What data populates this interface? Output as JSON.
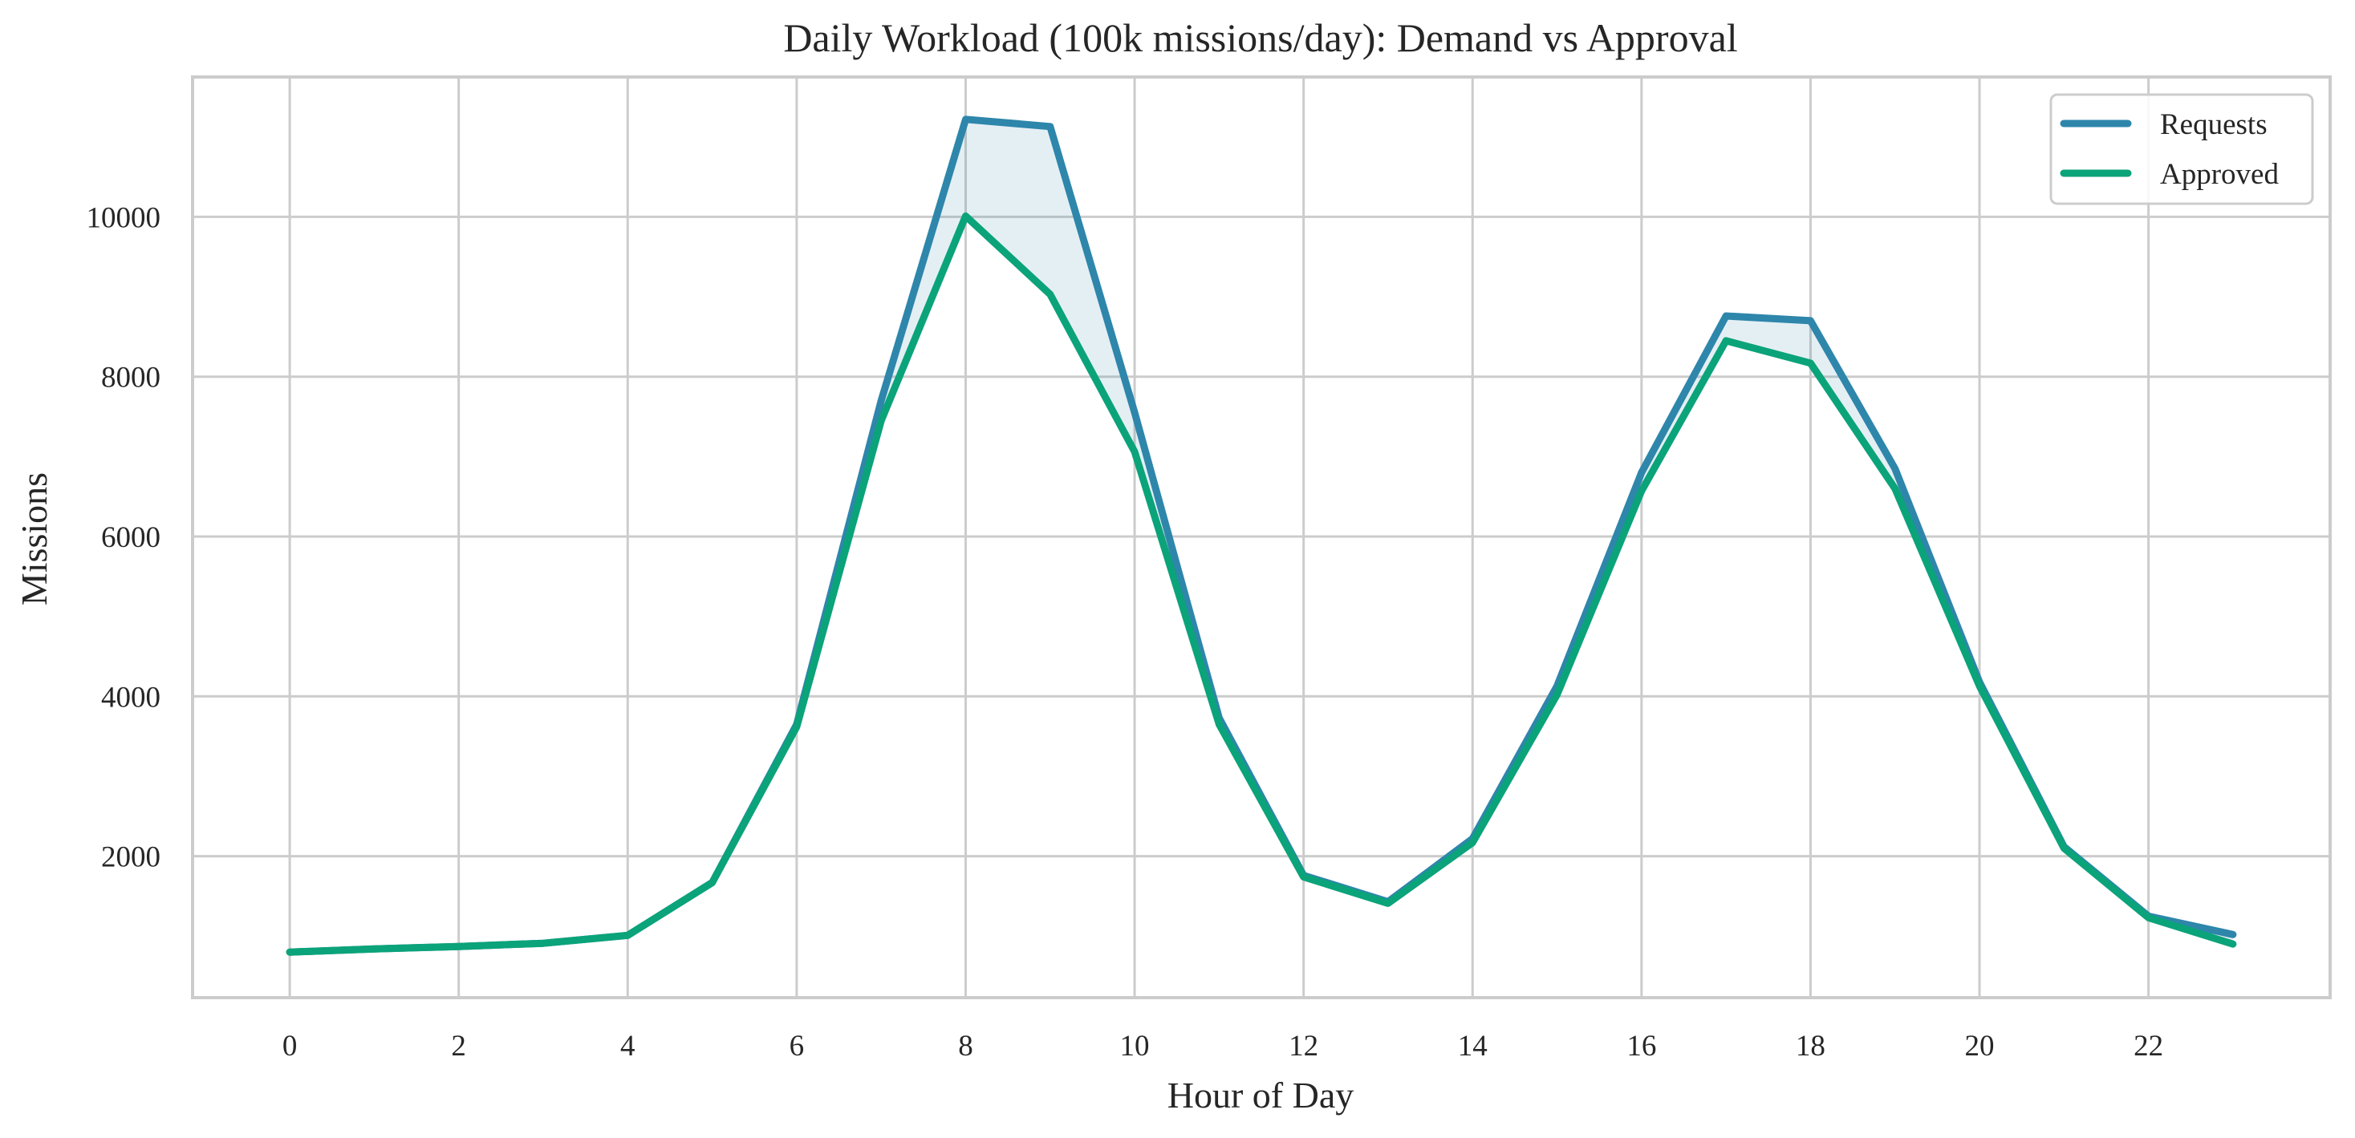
{
  "chart_data": {
    "type": "line",
    "title": "Daily Workload (100k missions/day): Demand vs Approval",
    "xlabel": "Hour of Day",
    "ylabel": "Missions",
    "xlim": [
      -1.15,
      24.15
    ],
    "ylim": [
      230,
      11750
    ],
    "xticks": [
      0,
      2,
      4,
      6,
      8,
      10,
      12,
      14,
      16,
      18,
      20,
      22
    ],
    "yticks": [
      2000,
      4000,
      6000,
      8000,
      10000
    ],
    "grid": true,
    "legend_position": "top-right",
    "fill_between": {
      "upper": "Requests",
      "lower": "Approved",
      "color": "#2e86ab",
      "opacity": 0.13
    },
    "x": [
      0,
      1,
      2,
      3,
      4,
      5,
      6,
      7,
      8,
      9,
      10,
      11,
      12,
      13,
      14,
      15,
      16,
      17,
      18,
      19,
      20,
      21,
      22,
      23
    ],
    "series": [
      {
        "name": "Requests",
        "color": "#2e86ab",
        "values": [
          800,
          840,
          870,
          910,
          1010,
          1670,
          3650,
          7700,
          11220,
          11130,
          7550,
          3730,
          1760,
          1430,
          2220,
          4130,
          6800,
          8760,
          8700,
          6850,
          4180,
          2120,
          1250,
          1020
        ]
      },
      {
        "name": "Approved",
        "color": "#0ba37a",
        "values": [
          800,
          840,
          870,
          910,
          1010,
          1670,
          3620,
          7450,
          10010,
          9030,
          7060,
          3650,
          1740,
          1410,
          2170,
          4020,
          6570,
          8450,
          8170,
          6600,
          4130,
          2100,
          1230,
          900
        ]
      }
    ]
  }
}
